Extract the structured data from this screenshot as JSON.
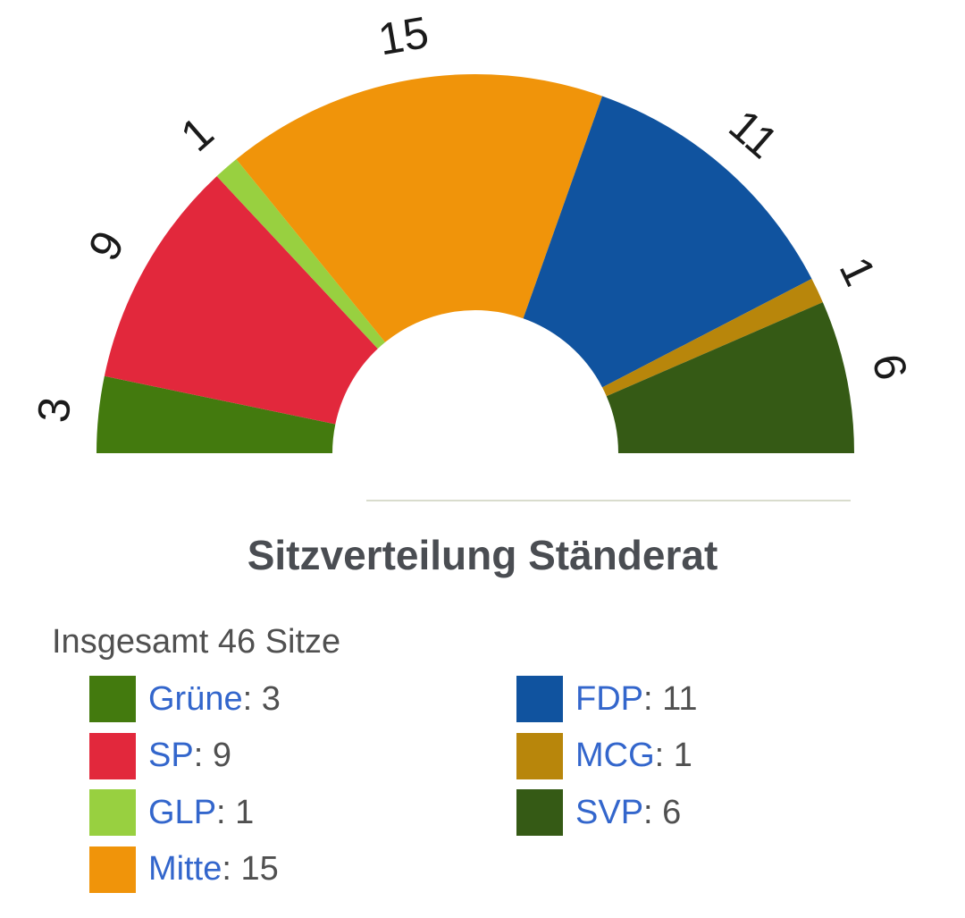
{
  "chart_data": {
    "type": "parliament-semicircle",
    "title": "Sitzverteilung Ständerat",
    "total_label": "Insgesamt 46 Sitze",
    "total": 46,
    "series": [
      {
        "name": "Grüne",
        "value": 3,
        "color": "#437a0e"
      },
      {
        "name": "SP",
        "value": 9,
        "color": "#e2283c"
      },
      {
        "name": "GLP",
        "value": 1,
        "color": "#98d040"
      },
      {
        "name": "Mitte",
        "value": 15,
        "color": "#f0940a"
      },
      {
        "name": "FDP",
        "value": 11,
        "color": "#10539f"
      },
      {
        "name": "MCG",
        "value": 1,
        "color": "#b8860b"
      },
      {
        "name": "SVP",
        "value": 6,
        "color": "#355a15"
      }
    ]
  }
}
